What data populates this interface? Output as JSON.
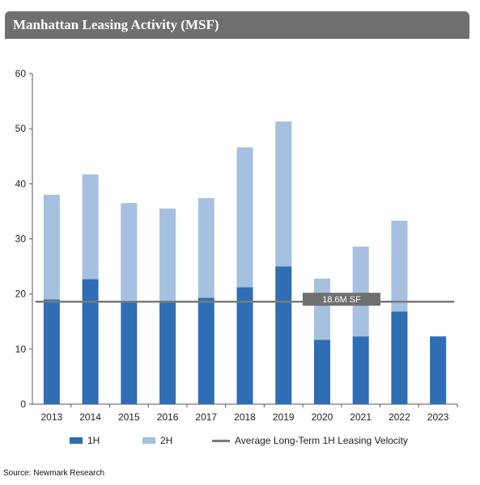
{
  "title": "Manhattan Leasing Activity (MSF)",
  "source": "Source: Newmark Research",
  "chart_data": {
    "type": "bar",
    "stacked": true,
    "categories": [
      "2013",
      "2014",
      "2015",
      "2016",
      "2017",
      "2018",
      "2019",
      "2020",
      "2021",
      "2022",
      "2023"
    ],
    "series": [
      {
        "name": "1H",
        "color": "#2f6db5",
        "values": [
          19.0,
          22.7,
          18.8,
          18.6,
          19.3,
          21.2,
          25.0,
          11.7,
          12.3,
          16.8,
          12.3
        ]
      },
      {
        "name": "2H",
        "color": "#a6c0e0",
        "values": [
          19.0,
          19.0,
          17.7,
          16.9,
          18.1,
          25.4,
          26.3,
          11.1,
          16.3,
          16.5,
          null
        ]
      }
    ],
    "reference_line": {
      "name": "Average Long-Term 1H Leasing Velocity",
      "value": 18.6,
      "label": "18.6M SF",
      "color": "#7a7a7a"
    },
    "ylim": [
      0,
      60
    ],
    "yticks": [
      0,
      10,
      20,
      30,
      40,
      50,
      60
    ],
    "grid": false,
    "legend_position": "bottom"
  }
}
